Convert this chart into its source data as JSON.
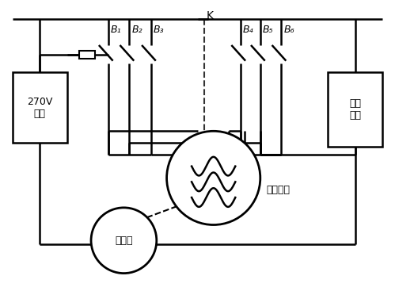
{
  "bg_color": "#ffffff",
  "line_color": "#000000",
  "engine_label": "发动机",
  "motor_label": "异步电机",
  "label_270V": "270V\n负载",
  "label_qidong": "起动\n电源",
  "label_K": "K",
  "sw_labels_left": [
    "B₁",
    "B₂",
    "B₃"
  ],
  "sw_labels_right": [
    "B₄",
    "B₅",
    "B₆"
  ]
}
